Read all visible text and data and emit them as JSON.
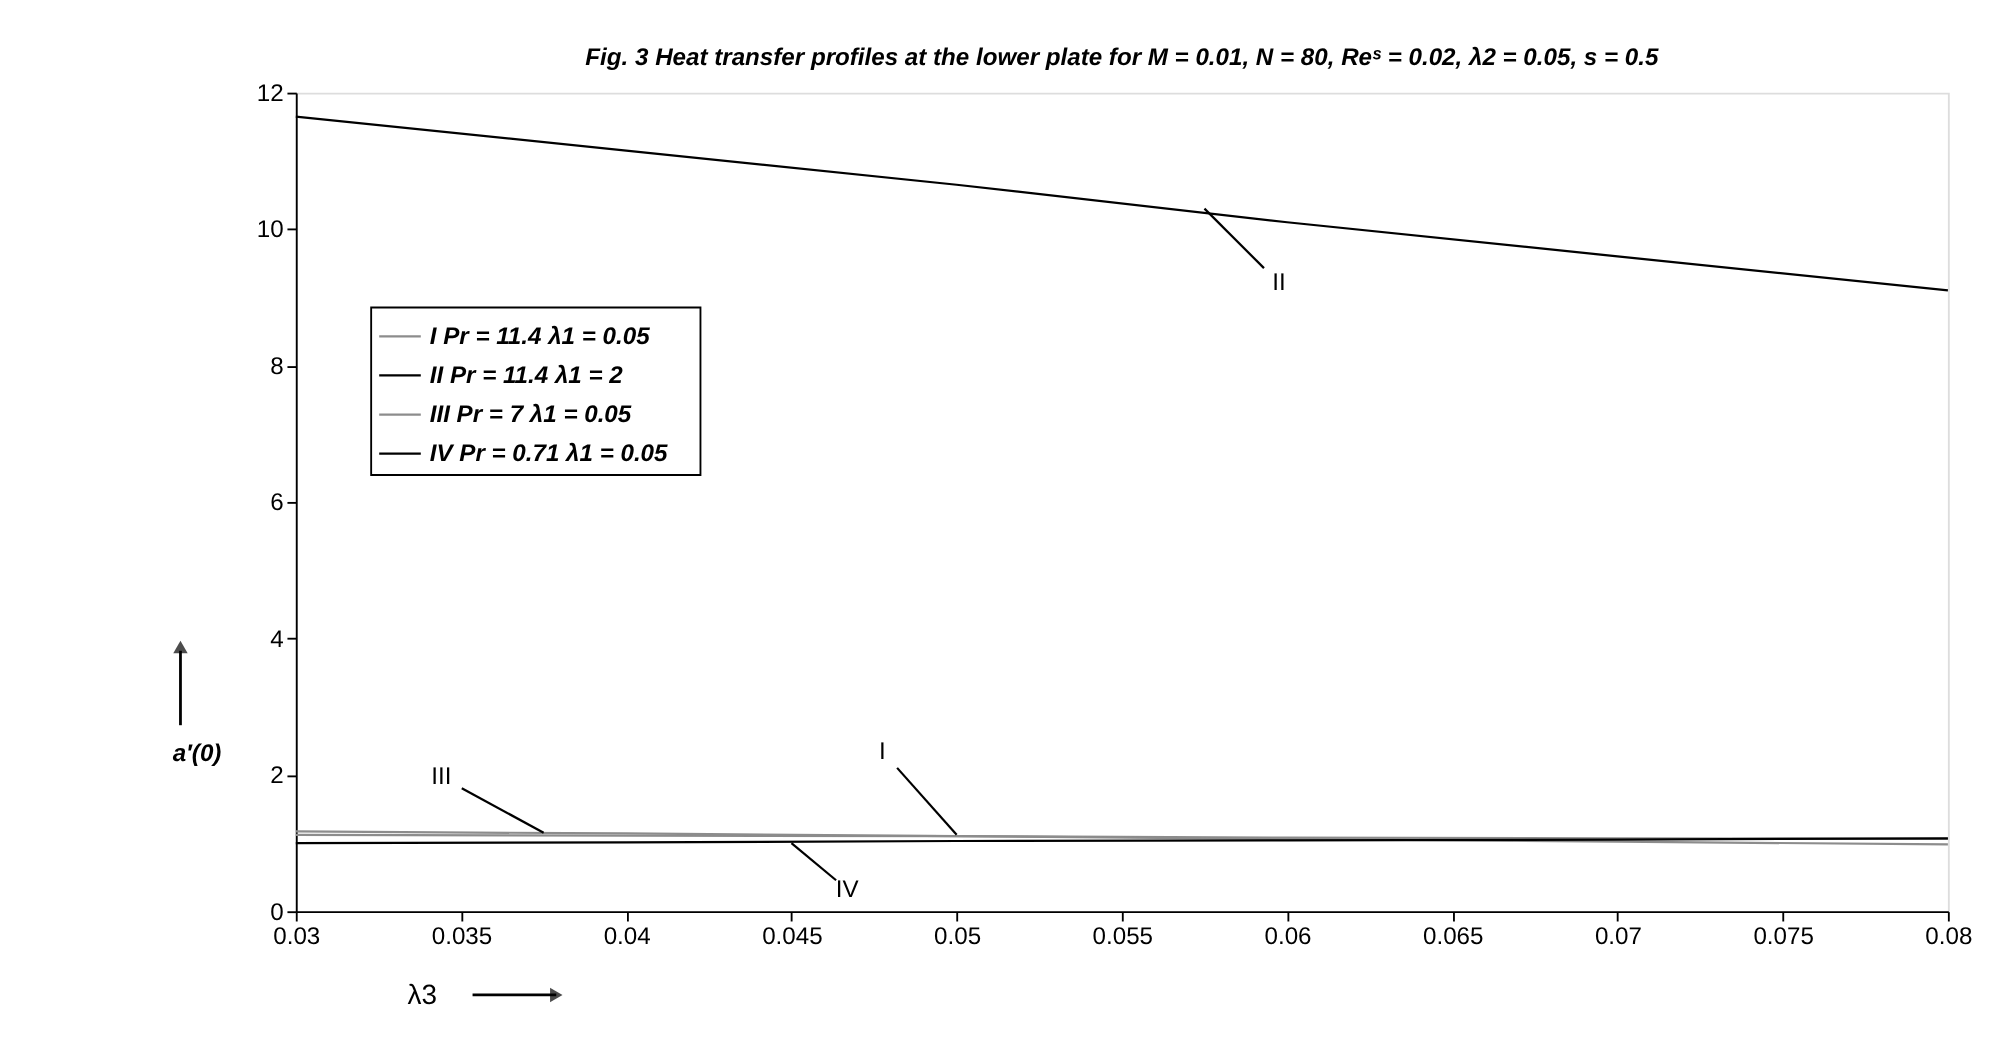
{
  "chart_data": {
    "type": "line",
    "title": "Fig. 3  Heat transfer profiles at the lower plate for M = 0.01, N = 80, Reˢ = 0.02,   λ2 = 0.05, s = 0.5",
    "xlabel": "λ3",
    "ylabel": "a′(0)",
    "x": [
      0.03,
      0.04,
      0.05,
      0.06,
      0.07,
      0.08
    ],
    "series": [
      {
        "name": "I  Pr = 11.4      λ1 = 0.05",
        "color": "#8c8c8c",
        "values": [
          1.12,
          1.11,
          1.1,
          1.08,
          1.07,
          1.06
        ]
      },
      {
        "name": "II  Pr = 11.4     λ1 = 2",
        "color": "#000000",
        "values": [
          11.65,
          11.15,
          10.65,
          10.1,
          9.6,
          9.1
        ]
      },
      {
        "name": "III Pr = 7          λ1 = 0.05",
        "color": "#8c8c8c",
        "values": [
          1.17,
          1.14,
          1.1,
          1.06,
          1.02,
          0.98
        ]
      },
      {
        "name": "IV  Pr = 0.71   λ1 = 0.05",
        "color": "#000000",
        "values": [
          1.0,
          1.01,
          1.03,
          1.04,
          1.05,
          1.07
        ]
      }
    ],
    "annotations": [
      {
        "text": "II",
        "x": 0.0575,
        "y": 10.3
      },
      {
        "text": "I",
        "x": 0.05,
        "y": 1.12
      },
      {
        "text": "III",
        "x": 0.0375,
        "y": 1.15
      },
      {
        "text": "IV",
        "x": 0.045,
        "y": 1.0
      }
    ],
    "xlim": [
      0.03,
      0.08
    ],
    "xticks": [
      0.03,
      0.035,
      0.04,
      0.045,
      0.05,
      0.055,
      0.06,
      0.065,
      0.07,
      0.075,
      0.08
    ],
    "ylim": [
      0,
      12
    ],
    "yticks": [
      0,
      2,
      4,
      6,
      8,
      10,
      12
    ],
    "grid": false,
    "legend": "top left",
    "line_style": "solid",
    "marker": "none"
  }
}
